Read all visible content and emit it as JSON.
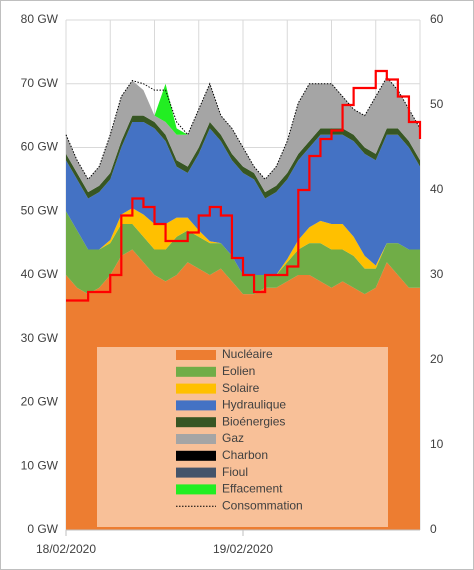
{
  "chart_data": {
    "type": "stacked_area",
    "x": [
      0,
      0.0625,
      0.125,
      0.1875,
      0.25,
      0.3125,
      0.375,
      0.4375,
      0.5,
      0.5625,
      0.625,
      0.6875,
      0.75,
      0.8125,
      0.875,
      0.9375,
      1,
      1.0625,
      1.125,
      1.1875,
      1.25,
      1.3125,
      1.375,
      1.4375,
      1.5,
      1.5625,
      1.625,
      1.6875,
      1.75,
      1.8125,
      1.875,
      1.9375,
      2
    ],
    "xlim": [
      0,
      2
    ],
    "xticks": [
      {
        "value": 0,
        "label": "18/02/2020"
      },
      {
        "value": 1,
        "label": "19/02/2020"
      }
    ],
    "ylim": [
      0,
      80
    ],
    "yticks": [
      {
        "value": 0,
        "label": "0 GW"
      },
      {
        "value": 10,
        "label": "10 GW"
      },
      {
        "value": 20,
        "label": "20 GW"
      },
      {
        "value": 30,
        "label": "30 GW"
      },
      {
        "value": 40,
        "label": "40 GW"
      },
      {
        "value": 50,
        "label": "50 GW"
      },
      {
        "value": 60,
        "label": "60 GW"
      },
      {
        "value": 70,
        "label": "70 GW"
      },
      {
        "value": 80,
        "label": "80 GW"
      }
    ],
    "y2lim": [
      0,
      60
    ],
    "y2ticks": [
      0,
      10,
      20,
      30,
      40,
      50,
      60
    ],
    "grid": true,
    "series": [
      {
        "name": "Nucléaire",
        "color": "#ed7d31",
        "values": [
          40,
          38,
          37,
          38,
          40,
          43,
          44,
          42,
          40,
          39,
          40,
          42,
          41,
          40,
          41,
          39,
          37,
          37,
          38,
          38,
          39,
          40,
          40,
          39,
          38,
          39,
          38,
          37,
          38,
          42,
          40,
          38,
          38
        ]
      },
      {
        "name": "Eolien",
        "color": "#70ad47",
        "values": [
          10,
          9,
          7,
          6,
          5,
          5,
          4,
          4,
          4,
          5,
          6,
          5,
          5,
          5,
          4,
          4,
          3,
          3,
          2,
          2,
          3,
          4,
          5,
          6,
          6,
          5,
          5,
          4,
          3,
          3,
          5,
          6,
          6
        ]
      },
      {
        "name": "Solaire",
        "color": "#ffc000",
        "values": [
          0,
          0,
          0,
          0,
          0.5,
          1.5,
          2.5,
          3.5,
          4,
          4,
          3,
          2,
          1,
          0.3,
          0,
          0,
          0,
          0,
          0,
          0,
          0.5,
          1.5,
          2.5,
          3.5,
          4,
          4,
          3,
          2,
          0.5,
          0,
          0,
          0,
          0
        ]
      },
      {
        "name": "Hydraulique",
        "color": "#4472c4",
        "values": [
          8,
          8,
          8,
          9,
          9.5,
          10.5,
          13.5,
          14.5,
          15,
          13,
          8,
          7,
          12,
          17.7,
          16,
          15,
          16,
          15,
          12,
          13,
          12.5,
          12.5,
          12.5,
          13.5,
          14,
          14,
          15,
          16,
          16.5,
          17,
          17,
          16,
          13
        ]
      },
      {
        "name": "Bioénergies",
        "color": "#375623",
        "values": [
          1,
          1,
          1,
          1,
          1,
          1,
          1,
          1,
          1,
          1,
          1,
          1,
          1,
          1,
          1,
          1,
          1,
          1,
          1,
          1,
          1,
          1,
          1,
          1,
          1,
          1,
          1,
          1,
          1,
          1,
          1,
          1,
          1
        ]
      },
      {
        "name": "Gaz",
        "color": "#a5a5a5",
        "values": [
          3,
          2,
          2,
          3,
          6,
          7,
          5.5,
          4,
          1,
          2,
          4,
          5,
          6,
          6,
          3,
          4,
          3,
          1,
          2,
          3,
          5,
          8,
          9,
          7,
          7,
          5,
          4,
          5,
          9,
          8,
          6,
          5,
          5
        ]
      },
      {
        "name": "Charbon",
        "color": "#000000",
        "values": [
          0,
          0,
          0,
          0,
          0,
          0,
          0,
          0,
          0,
          0,
          0,
          0,
          0,
          0,
          0,
          0,
          0,
          0,
          0,
          0,
          0,
          0,
          0,
          0,
          0,
          0,
          0,
          0,
          0,
          0,
          0,
          0,
          0
        ]
      },
      {
        "name": "Fioul",
        "color": "#44546a",
        "values": [
          0,
          0,
          0,
          0,
          0,
          0,
          0,
          0,
          0,
          0,
          0,
          0,
          0,
          0,
          0,
          0,
          0,
          0,
          0,
          0,
          0,
          0,
          0,
          0,
          0,
          0,
          0,
          0,
          0,
          0,
          0,
          0,
          0
        ]
      },
      {
        "name": "Effacement",
        "color": "#22ee22",
        "values": [
          0,
          0,
          0,
          0,
          0,
          0,
          0,
          0,
          0,
          6,
          1,
          0,
          0,
          0,
          0,
          0,
          0,
          0,
          0,
          0,
          0,
          0,
          0,
          0,
          0,
          0,
          0,
          0,
          0,
          0,
          0,
          0,
          0
        ]
      }
    ],
    "consumption": {
      "name": "Consommation",
      "color": "#000000",
      "values": [
        62,
        58,
        55,
        57,
        62,
        68,
        70.5,
        70,
        69,
        69,
        64,
        62,
        66,
        70,
        65,
        63,
        60,
        57,
        55,
        57,
        61,
        67,
        70,
        70,
        70,
        68,
        66,
        65,
        68,
        71,
        69,
        66,
        63
      ]
    },
    "price": {
      "color": "#ff0000",
      "axis": "y2",
      "values": [
        27,
        27,
        28,
        28,
        30,
        37,
        39,
        38,
        36,
        34,
        34,
        35,
        37,
        38,
        37,
        32,
        30,
        28,
        30,
        30,
        31,
        40,
        44,
        46,
        47,
        50,
        52,
        52,
        54,
        53,
        51,
        48,
        46
      ]
    }
  }
}
